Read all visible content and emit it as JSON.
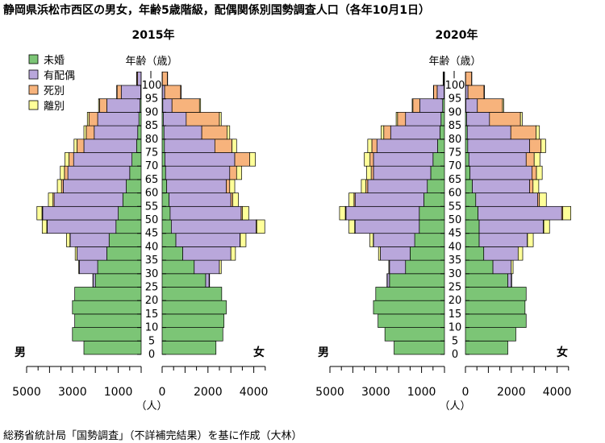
{
  "title": "静岡県浜松市西区の男女，年齢5歳階級，配偶関係別国勢調査人口（各年10月1日）",
  "source": "総務省統計局「国勢調査」（不詳補完結果）を基に作成（大林）",
  "legend": [
    {
      "key": "unmarried",
      "label": "未婚",
      "color": "#7cc576"
    },
    {
      "key": "married",
      "label": "有配偶",
      "color": "#b9a7db"
    },
    {
      "key": "widowed",
      "label": "死別",
      "color": "#f7b37c"
    },
    {
      "key": "divorced",
      "label": "離別",
      "color": "#ffff99"
    }
  ],
  "labels": {
    "age_axis": "年齢（歳）",
    "male": "男",
    "female": "女",
    "unit": "（人）",
    "male_ticks": [
      "5000",
      "3000",
      "1000"
    ],
    "female_ticks": [
      "0",
      "2000",
      "4000"
    ],
    "ages": [
      "0",
      "5",
      "10",
      "15",
      "20",
      "25",
      "30",
      "35",
      "40",
      "45",
      "50",
      "55",
      "60",
      "65",
      "70",
      "75",
      "80",
      "85",
      "90",
      "95",
      "100"
    ]
  },
  "chart_data": {
    "type": "bar",
    "subtype": "population-pyramid-stacked",
    "categories": [
      "0",
      "5",
      "10",
      "15",
      "20",
      "25",
      "30",
      "35",
      "40",
      "45",
      "50",
      "55",
      "60",
      "65",
      "70",
      "75",
      "80",
      "85",
      "90",
      "95",
      "100"
    ],
    "series_order": [
      "unmarried",
      "married",
      "widowed",
      "divorced"
    ],
    "xlim": [
      0,
      5000
    ],
    "panels": [
      {
        "year": "2015年",
        "male": {
          "unmarried": [
            2500,
            3000,
            2900,
            3000,
            2900,
            2000,
            1900,
            1500,
            1400,
            1100,
            1000,
            800,
            650,
            500,
            400,
            200,
            150,
            100,
            50,
            20,
            5
          ],
          "married": [
            0,
            0,
            0,
            0,
            0,
            100,
            800,
            1300,
            1700,
            3000,
            3300,
            3000,
            2750,
            2700,
            2550,
            2300,
            1900,
            1800,
            1450,
            850,
            150
          ],
          "widowed": [
            0,
            0,
            0,
            0,
            0,
            0,
            0,
            0,
            10,
            20,
            30,
            50,
            80,
            150,
            200,
            300,
            350,
            380,
            320,
            180,
            40
          ],
          "divorced": [
            0,
            0,
            0,
            0,
            0,
            10,
            30,
            80,
            150,
            200,
            220,
            200,
            180,
            180,
            180,
            130,
            100,
            70,
            40,
            20,
            5
          ]
        },
        "female": {
          "unmarried": [
            2350,
            2650,
            2700,
            2800,
            2600,
            1900,
            1400,
            900,
            600,
            400,
            350,
            300,
            200,
            150,
            120,
            100,
            80,
            50,
            30,
            10,
            5
          ],
          "married": [
            0,
            0,
            0,
            0,
            0,
            150,
            1100,
            2100,
            2800,
            3700,
            3100,
            2700,
            2600,
            2800,
            3050,
            2200,
            1650,
            1000,
            400,
            100,
            5
          ],
          "widowed": [
            0,
            0,
            0,
            0,
            0,
            0,
            0,
            0,
            10,
            30,
            50,
            80,
            150,
            300,
            650,
            750,
            1100,
            1450,
            1200,
            700,
            220
          ],
          "divorced": [
            0,
            0,
            0,
            0,
            0,
            20,
            80,
            200,
            250,
            350,
            280,
            250,
            220,
            220,
            250,
            200,
            120,
            80,
            50,
            20,
            10
          ]
        }
      },
      {
        "year": "2020年",
        "male": {
          "unmarried": [
            2200,
            2600,
            2900,
            3100,
            3000,
            2400,
            1700,
            1500,
            1300,
            1100,
            1100,
            900,
            750,
            600,
            500,
            300,
            200,
            150,
            80,
            20,
            5
          ],
          "married": [
            0,
            0,
            0,
            0,
            0,
            100,
            700,
            1300,
            1800,
            2800,
            3200,
            3000,
            2600,
            2500,
            2600,
            2650,
            2150,
            1550,
            1000,
            300,
            20
          ],
          "widowed": [
            0,
            0,
            0,
            0,
            0,
            0,
            0,
            0,
            10,
            20,
            30,
            50,
            80,
            100,
            150,
            220,
            300,
            350,
            300,
            150,
            30
          ],
          "divorced": [
            0,
            0,
            0,
            0,
            0,
            10,
            30,
            80,
            150,
            250,
            250,
            220,
            200,
            200,
            250,
            180,
            120,
            60,
            30,
            10,
            5
          ]
        },
        "female": {
          "unmarried": [
            1850,
            2200,
            2650,
            2600,
            2650,
            1850,
            1200,
            800,
            600,
            600,
            550,
            450,
            300,
            200,
            150,
            100,
            80,
            50,
            20,
            10,
            5
          ],
          "married": [
            0,
            0,
            0,
            0,
            0,
            150,
            800,
            1500,
            2100,
            2800,
            3650,
            2700,
            2500,
            2700,
            2500,
            2700,
            1900,
            1000,
            500,
            100,
            5
          ],
          "widowed": [
            0,
            0,
            0,
            0,
            0,
            0,
            0,
            0,
            10,
            20,
            50,
            80,
            150,
            200,
            350,
            500,
            1100,
            1350,
            1100,
            700,
            260
          ],
          "divorced": [
            0,
            0,
            0,
            0,
            0,
            20,
            80,
            200,
            250,
            250,
            350,
            300,
            250,
            250,
            250,
            200,
            150,
            80,
            50,
            20,
            10
          ]
        }
      }
    ]
  }
}
